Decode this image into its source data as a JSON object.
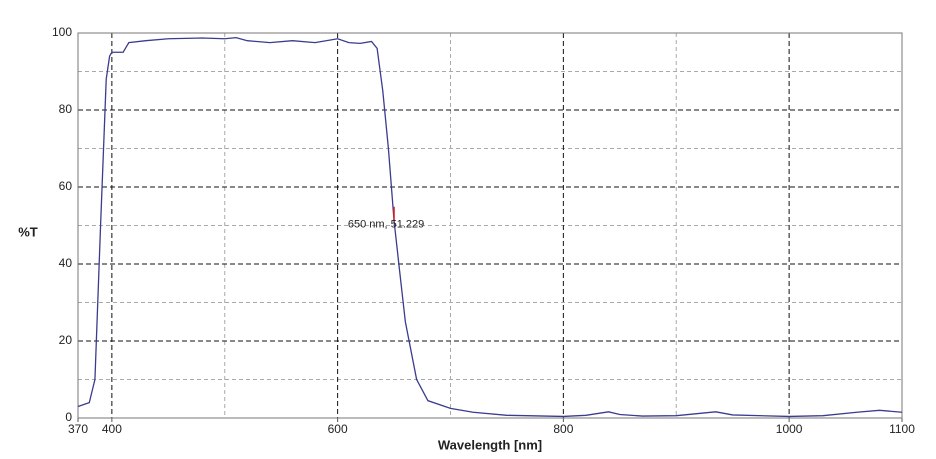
{
  "chart_data": {
    "type": "line",
    "x_label": "Wavelength [nm]",
    "y_label": "%T",
    "x": [
      370,
      380,
      385,
      390,
      395,
      398,
      400,
      410,
      415,
      430,
      450,
      480,
      500,
      510,
      520,
      540,
      560,
      580,
      600,
      610,
      620,
      630,
      635,
      640,
      645,
      650,
      655,
      660,
      670,
      680,
      700,
      720,
      750,
      800,
      820,
      840,
      850,
      870,
      900,
      935,
      950,
      1000,
      1030,
      1060,
      1080,
      1100
    ],
    "series": [
      {
        "color": "#3b3b8f",
        "values": [
          3,
          4,
          10,
          50,
          88,
          94,
          95,
          95,
          97.5,
          98,
          98.5,
          98.7,
          98.5,
          98.8,
          98,
          97.5,
          98,
          97.5,
          98.5,
          97.5,
          97.3,
          97.8,
          96,
          85,
          70,
          51.229,
          38,
          25,
          10,
          4.5,
          2.5,
          1.5,
          0.7,
          0.4,
          0.7,
          1.6,
          0.9,
          0.5,
          0.6,
          1.6,
          0.8,
          0.4,
          0.6,
          1.5,
          2,
          1.5
        ]
      }
    ],
    "xlim": [
      370,
      1100
    ],
    "ylim": [
      0,
      100
    ],
    "xticks": [
      370,
      400,
      600,
      800,
      1000,
      1100
    ],
    "yticks": [
      0,
      20,
      40,
      60,
      80,
      100
    ],
    "major_grid_x": [
      400,
      600,
      800,
      1000
    ],
    "minor_grid_x": [
      500,
      700,
      900
    ],
    "minor_grid_y": [
      10,
      30,
      50,
      70,
      90
    ],
    "annotation": {
      "x": 650,
      "y": 51.229,
      "label": "650 nm, 51.229",
      "color": "#e02020"
    }
  }
}
